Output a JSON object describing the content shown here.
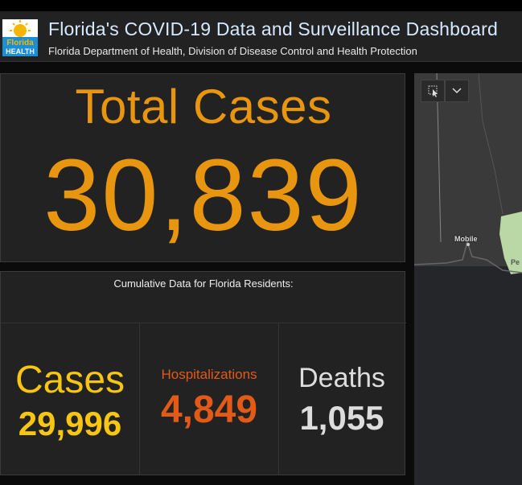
{
  "header": {
    "title": "Florida's COVID-19 Data and Surveillance Dashboard",
    "subtitle": "Florida Department of Health, Division of Disease Control and Health Protection",
    "logo_text_top": "Florida",
    "logo_text_bottom": "HEALTH"
  },
  "total": {
    "label": "Total Cases",
    "value": "30,839"
  },
  "cumulative": {
    "title": "Cumulative Data for Florida Residents:",
    "cases": {
      "label": "Cases",
      "value": "29,996"
    },
    "hospitalizations": {
      "label": "Hospitalizations",
      "value": "4,849"
    },
    "deaths": {
      "label": "Deaths",
      "value": "1,055"
    }
  },
  "map": {
    "city_label": "Mobile",
    "edge_label": "Pe",
    "icons": [
      "select-tool-icon",
      "chevron-down-icon"
    ]
  },
  "colors": {
    "total_orange": "#e8950f",
    "cases_yellow": "#f7c613",
    "hosp_orange": "#e25a17",
    "deaths_gray": "#dddddd",
    "title_blue": "#d6eaff",
    "panel_bg": "#222222"
  }
}
